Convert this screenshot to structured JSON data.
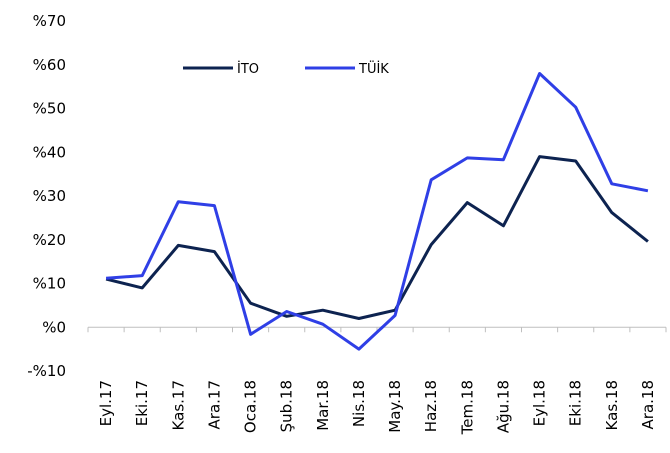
{
  "chart_data": {
    "type": "line",
    "categories": [
      "Eyl.17",
      "Eki.17",
      "Kas.17",
      "Ara.17",
      "Oca.18",
      "Şub.18",
      "Mar.18",
      "Nis.18",
      "May.18",
      "Haz.18",
      "Tem.18",
      "Ağu.18",
      "Eyl.18",
      "Eki.18",
      "Kas.18",
      "Ara.18"
    ],
    "series": [
      {
        "name": "İTO",
        "color": "#0d2350",
        "values": [
          11,
          9,
          18.7,
          17.3,
          5.5,
          2.5,
          3.9,
          2,
          3.9,
          18.9,
          28.5,
          23.2,
          39,
          38,
          26.2,
          19.6
        ]
      },
      {
        "name": "TÜİK",
        "color": "#2f3fe6",
        "values": [
          11.2,
          11.8,
          28.7,
          27.8,
          -1.6,
          3.6,
          0.7,
          -5,
          2.7,
          33.7,
          38.7,
          38.3,
          58,
          50.3,
          32.8,
          31.2
        ]
      }
    ],
    "ylim": [
      -10,
      70
    ],
    "yticks": [
      {
        "value": -10,
        "label": "-%10"
      },
      {
        "value": 0,
        "label": "%0"
      },
      {
        "value": 10,
        "label": "%10"
      },
      {
        "value": 20,
        "label": "%20"
      },
      {
        "value": 30,
        "label": "%30"
      },
      {
        "value": 40,
        "label": "%40"
      },
      {
        "value": 50,
        "label": "%50"
      },
      {
        "value": 60,
        "label": "%60"
      },
      {
        "value": 70,
        "label": "%70"
      }
    ],
    "grid": false,
    "legend": "top"
  }
}
